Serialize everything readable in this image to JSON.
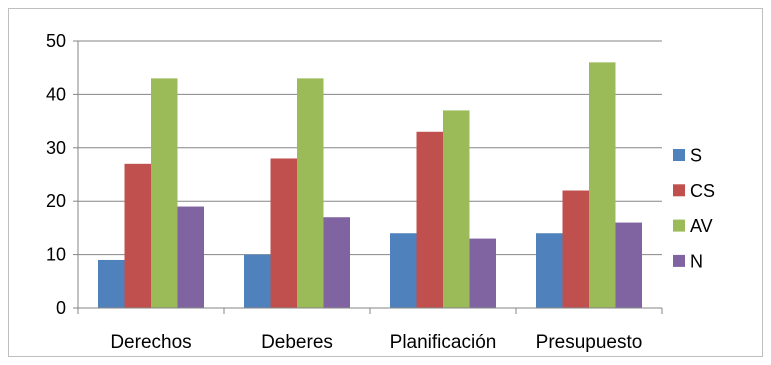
{
  "chart_data": {
    "type": "bar",
    "title": "",
    "xlabel": "",
    "ylabel": "",
    "categories": [
      "Derechos",
      "Deberes",
      "Planificación",
      "Presupuesto"
    ],
    "series": [
      {
        "name": "S",
        "color": "#4f81bd",
        "values": [
          9,
          10,
          14,
          14
        ]
      },
      {
        "name": "CS",
        "color": "#c0504d",
        "values": [
          27,
          28,
          33,
          22
        ]
      },
      {
        "name": "AV",
        "color": "#9bbb59",
        "values": [
          43,
          43,
          37,
          46
        ]
      },
      {
        "name": "N",
        "color": "#8064a2",
        "values": [
          19,
          17,
          13,
          16
        ]
      }
    ],
    "ylim": [
      0,
      50
    ],
    "yticks": [
      0,
      10,
      20,
      30,
      40,
      50
    ],
    "grid": true,
    "legend": "right"
  }
}
